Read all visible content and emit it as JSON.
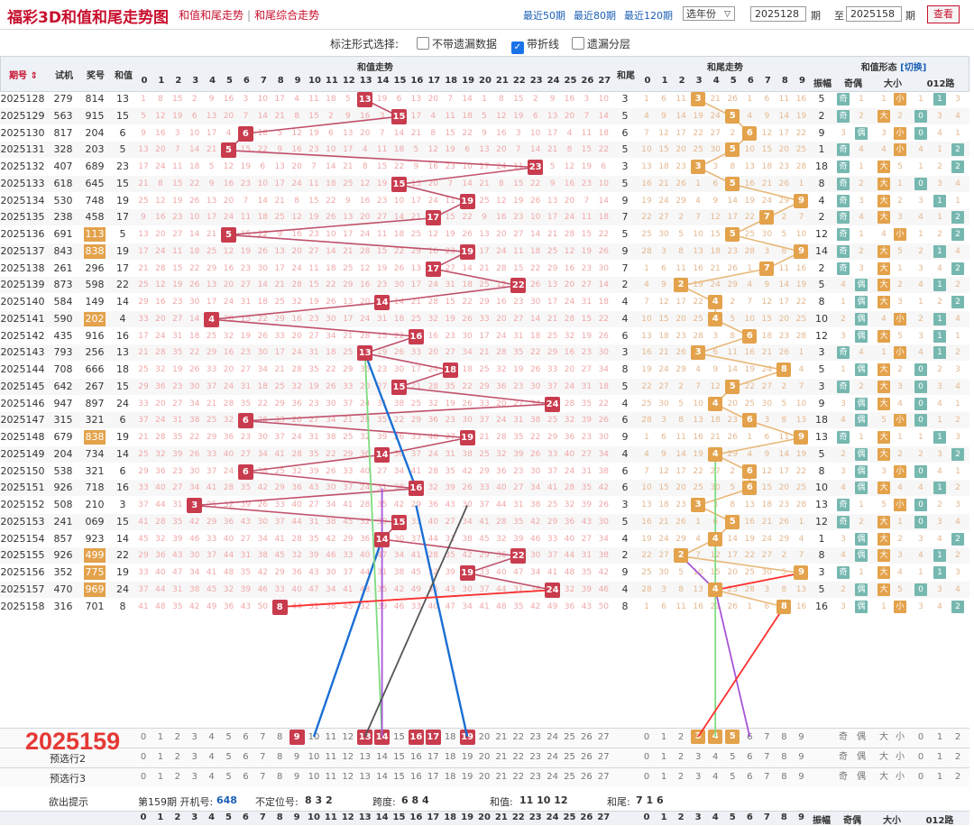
{
  "header": {
    "title": "福彩3D和值和尾走势图",
    "tab1": "和值和尾走势",
    "tab_sep": "|",
    "tab2": "和尾综合走势",
    "quick": [
      "最近50期",
      "最近80期",
      "最近120期"
    ],
    "select": "选年份",
    "from_value": "2025128",
    "label_qi": "期",
    "label_to": "至",
    "to_value": "2025158",
    "label_qi2": "期",
    "view_button": "查看"
  },
  "options": {
    "label": "标注形式选择:",
    "opt1": "不带遗漏数据",
    "opt2": "带折线",
    "opt3": "遗漏分层",
    "opt1_checked": false,
    "opt2_checked": true,
    "opt3_checked": false
  },
  "columns": {
    "issue": "期号",
    "test": "试机",
    "prize": "奖号",
    "sum": "和值",
    "sum_trend": "和值走势",
    "tail": "和尾",
    "tail_trend": "和尾走势",
    "shape": "和值形态",
    "switch": "[切换]",
    "amp": "振幅",
    "parity": "奇偶",
    "size": "大小",
    "route": "012路",
    "sum_nums": [
      "0",
      "1",
      "2",
      "3",
      "4",
      "5",
      "6",
      "7",
      "8",
      "9",
      "10",
      "11",
      "12",
      "13",
      "14",
      "15",
      "16",
      "17",
      "18",
      "19",
      "20",
      "21",
      "22",
      "23",
      "24",
      "25",
      "26",
      "27"
    ],
    "tail_nums": [
      "0",
      "1",
      "2",
      "3",
      "4",
      "5",
      "6",
      "7",
      "8",
      "9"
    ],
    "parity_sub": [
      "奇",
      "偶"
    ],
    "size_sub": [
      "大",
      "小"
    ],
    "route_sub": [
      "0",
      "1",
      "2"
    ]
  },
  "rows": [
    {
      "issue": "2025128",
      "test": "279",
      "prize": "814",
      "sum": "13",
      "tail": "3",
      "amp": "5",
      "parity": "奇",
      "size": "小",
      "route": "1"
    },
    {
      "issue": "2025129",
      "test": "563",
      "prize": "915",
      "sum": "15",
      "tail": "5",
      "amp": "2",
      "parity": "奇",
      "size": "大",
      "route": "0"
    },
    {
      "issue": "2025130",
      "test": "817",
      "prize": "204",
      "sum": "6",
      "tail": "6",
      "amp": "9",
      "parity": "偶",
      "size": "小",
      "route": "0"
    },
    {
      "issue": "2025131",
      "test": "328",
      "prize": "203",
      "sum": "5",
      "tail": "5",
      "amp": "1",
      "parity": "奇",
      "size": "小",
      "route": "2"
    },
    {
      "issue": "2025132",
      "test": "407",
      "prize": "689",
      "sum": "23",
      "tail": "3",
      "amp": "18",
      "parity": "奇",
      "size": "大",
      "route": "2"
    },
    {
      "issue": "2025133",
      "test": "618",
      "prize": "645",
      "sum": "15",
      "tail": "5",
      "amp": "8",
      "parity": "奇",
      "size": "大",
      "route": "0"
    },
    {
      "issue": "2025134",
      "test": "530",
      "prize": "748",
      "sum": "19",
      "tail": "9",
      "amp": "4",
      "parity": "奇",
      "size": "大",
      "route": "1"
    },
    {
      "issue": "2025135",
      "test": "238",
      "prize": "458",
      "sum": "17",
      "tail": "7",
      "amp": "2",
      "parity": "奇",
      "size": "大",
      "route": "2"
    },
    {
      "issue": "2025136",
      "test": "691",
      "prize": "113",
      "sum": "5",
      "tail": "5",
      "amp": "12",
      "parity": "奇",
      "size": "小",
      "route": "2"
    },
    {
      "issue": "2025137",
      "test": "843",
      "prize": "838",
      "sum": "19",
      "tail": "9",
      "amp": "14",
      "parity": "奇",
      "size": "大",
      "route": "1"
    },
    {
      "issue": "2025138",
      "test": "261",
      "prize": "296",
      "sum": "17",
      "tail": "7",
      "amp": "2",
      "parity": "奇",
      "size": "大",
      "route": "2"
    },
    {
      "issue": "2025139",
      "test": "873",
      "prize": "598",
      "sum": "22",
      "tail": "2",
      "amp": "5",
      "parity": "偶",
      "size": "大",
      "route": "1"
    },
    {
      "issue": "2025140",
      "test": "584",
      "prize": "149",
      "sum": "14",
      "tail": "4",
      "amp": "8",
      "parity": "偶",
      "size": "大",
      "route": "2"
    },
    {
      "issue": "2025141",
      "test": "590",
      "prize": "202",
      "sum": "4",
      "tail": "4",
      "amp": "10",
      "parity": "偶",
      "size": "小",
      "route": "1"
    },
    {
      "issue": "2025142",
      "test": "435",
      "prize": "916",
      "sum": "16",
      "tail": "6",
      "amp": "12",
      "parity": "偶",
      "size": "大",
      "route": "1"
    },
    {
      "issue": "2025143",
      "test": "793",
      "prize": "256",
      "sum": "13",
      "tail": "3",
      "amp": "3",
      "parity": "奇",
      "size": "小",
      "route": "1"
    },
    {
      "issue": "2025144",
      "test": "708",
      "prize": "666",
      "sum": "18",
      "tail": "8",
      "amp": "5",
      "parity": "偶",
      "size": "大",
      "route": "0"
    },
    {
      "issue": "2025145",
      "test": "642",
      "prize": "267",
      "sum": "15",
      "tail": "5",
      "amp": "3",
      "parity": "奇",
      "size": "大",
      "route": "0"
    },
    {
      "issue": "2025146",
      "test": "947",
      "prize": "897",
      "sum": "24",
      "tail": "4",
      "amp": "9",
      "parity": "偶",
      "size": "大",
      "route": "0"
    },
    {
      "issue": "2025147",
      "test": "315",
      "prize": "321",
      "sum": "6",
      "tail": "6",
      "amp": "18",
      "parity": "偶",
      "size": "小",
      "route": "0"
    },
    {
      "issue": "2025148",
      "test": "679",
      "prize": "838",
      "sum": "19",
      "tail": "9",
      "amp": "13",
      "parity": "奇",
      "size": "大",
      "route": "1"
    },
    {
      "issue": "2025149",
      "test": "204",
      "prize": "734",
      "sum": "14",
      "tail": "4",
      "amp": "5",
      "parity": "偶",
      "size": "大",
      "route": "2"
    },
    {
      "issue": "2025150",
      "test": "538",
      "prize": "321",
      "sum": "6",
      "tail": "6",
      "amp": "8",
      "parity": "偶",
      "size": "小",
      "route": "0"
    },
    {
      "issue": "2025151",
      "test": "926",
      "prize": "718",
      "sum": "16",
      "tail": "6",
      "amp": "10",
      "parity": "偶",
      "size": "大",
      "route": "1"
    },
    {
      "issue": "2025152",
      "test": "508",
      "prize": "210",
      "sum": "3",
      "tail": "3",
      "amp": "13",
      "parity": "奇",
      "size": "小",
      "route": "0"
    },
    {
      "issue": "2025153",
      "test": "241",
      "prize": "069",
      "sum": "15",
      "tail": "5",
      "amp": "12",
      "parity": "奇",
      "size": "大",
      "route": "0"
    },
    {
      "issue": "2025154",
      "test": "857",
      "prize": "923",
      "sum": "14",
      "tail": "4",
      "amp": "1",
      "parity": "偶",
      "size": "大",
      "route": "2"
    },
    {
      "issue": "2025155",
      "test": "926",
      "prize": "499",
      "sum": "22",
      "tail": "2",
      "amp": "8",
      "parity": "偶",
      "size": "大",
      "route": "1"
    },
    {
      "issue": "2025156",
      "test": "352",
      "prize": "775",
      "sum": "19",
      "tail": "9",
      "amp": "3",
      "parity": "奇",
      "size": "大",
      "route": "1"
    },
    {
      "issue": "2025157",
      "test": "470",
      "prize": "969",
      "sum": "24",
      "tail": "4",
      "amp": "5",
      "parity": "偶",
      "size": "大",
      "route": "0"
    },
    {
      "issue": "2025158",
      "test": "316",
      "prize": "701",
      "sum": "8",
      "tail": "8",
      "amp": "16",
      "parity": "偶",
      "size": "小",
      "route": "2"
    }
  ],
  "highlight_prizes": [
    "113",
    "838",
    "202",
    "838",
    "499",
    "775",
    "969"
  ],
  "predict": {
    "next_issue": "2025159",
    "row2_label": "预选行2",
    "row3_label": "预选行3",
    "selected_sums": [
      9,
      13,
      14,
      16,
      17,
      19
    ],
    "selected_tails": [
      3,
      4,
      5
    ],
    "parity": [
      "奇",
      "偶"
    ],
    "size": [
      "大",
      "小"
    ],
    "route": [
      "0",
      "1",
      "2"
    ]
  },
  "info": {
    "label": "欲出提示",
    "issue_text": "第159期 开机号:",
    "machine": "648",
    "unfixed_label": "不定位号:",
    "unfixed": "8 3 2",
    "span_label": "跨度:",
    "span": "6 8 4",
    "sum_label": "和值:",
    "sums": "11 10 12",
    "tail_label": "和尾:",
    "tails": "7 1 6"
  },
  "colors": {
    "red": "#c83c4e",
    "orange": "#e3a24b",
    "green": "#76b8b0",
    "blue": "#1a5fb4",
    "title": "#c8102e"
  }
}
